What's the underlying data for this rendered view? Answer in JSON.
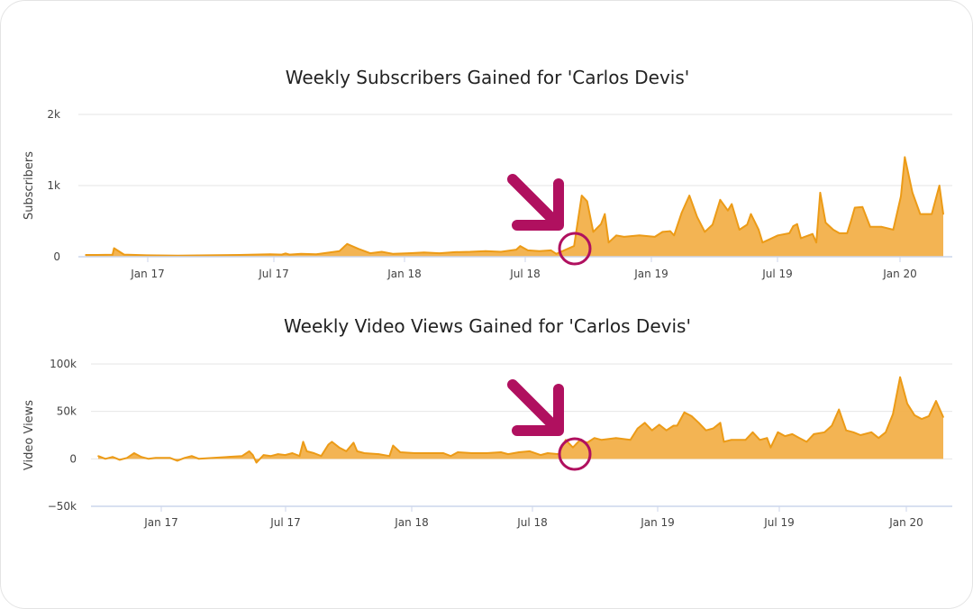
{
  "colors": {
    "series_fill": "#f2b04a",
    "series_line": "#ec9b17",
    "annotation": "#b0105f",
    "grid": "#e6e6e6"
  },
  "chart_data": [
    {
      "type": "area",
      "title": "Weekly Subscribers Gained for 'Carlos Devis'",
      "xlabel": "",
      "ylabel": "Subscribers",
      "ylim": [
        0,
        2000
      ],
      "y_ticks": [
        0,
        1000,
        2000
      ],
      "y_tick_labels": [
        "0",
        "1k",
        "2k"
      ],
      "x_tick_labels": [
        "Jan 17",
        "Jul 17",
        "Jan 18",
        "Jul 18",
        "Jan 19",
        "Jul 19",
        "Jan 20"
      ],
      "x_start": "2016-09",
      "x_end": "2020-02",
      "annotation": "arrow-and-circle",
      "annotation_date": "2018-09-10",
      "series": [
        {
          "values": [
            [
              0.0,
              25
            ],
            [
              0.015,
              25
            ],
            [
              0.035,
              28
            ],
            [
              0.037,
              120
            ],
            [
              0.05,
              30
            ],
            [
              0.08,
              20
            ],
            [
              0.12,
              15
            ],
            [
              0.16,
              20
            ],
            [
              0.2,
              25
            ],
            [
              0.24,
              35
            ],
            [
              0.255,
              30
            ],
            [
              0.26,
              45
            ],
            [
              0.265,
              30
            ],
            [
              0.28,
              40
            ],
            [
              0.3,
              35
            ],
            [
              0.33,
              80
            ],
            [
              0.34,
              180
            ],
            [
              0.355,
              110
            ],
            [
              0.37,
              50
            ],
            [
              0.385,
              70
            ],
            [
              0.4,
              40
            ],
            [
              0.42,
              50
            ],
            [
              0.44,
              60
            ],
            [
              0.46,
              50
            ],
            [
              0.48,
              65
            ],
            [
              0.5,
              70
            ],
            [
              0.52,
              80
            ],
            [
              0.54,
              70
            ],
            [
              0.56,
              100
            ],
            [
              0.565,
              150
            ],
            [
              0.575,
              90
            ],
            [
              0.59,
              80
            ],
            [
              0.605,
              90
            ],
            [
              0.612,
              40
            ],
            [
              0.62,
              80
            ],
            [
              0.635,
              150
            ],
            [
              0.645,
              860
            ],
            [
              0.652,
              780
            ],
            [
              0.66,
              350
            ],
            [
              0.67,
              460
            ],
            [
              0.675,
              600
            ],
            [
              0.68,
              200
            ],
            [
              0.69,
              300
            ],
            [
              0.7,
              280
            ],
            [
              0.72,
              300
            ],
            [
              0.74,
              280
            ],
            [
              0.75,
              350
            ],
            [
              0.76,
              360
            ],
            [
              0.765,
              300
            ],
            [
              0.775,
              620
            ],
            [
              0.785,
              860
            ],
            [
              0.795,
              560
            ],
            [
              0.805,
              350
            ],
            [
              0.815,
              450
            ],
            [
              0.825,
              800
            ],
            [
              0.835,
              650
            ],
            [
              0.84,
              740
            ],
            [
              0.85,
              380
            ],
            [
              0.86,
              450
            ],
            [
              0.865,
              600
            ],
            [
              0.875,
              380
            ],
            [
              0.88,
              200
            ],
            [
              0.89,
              250
            ],
            [
              0.9,
              300
            ],
            [
              0.915,
              330
            ],
            [
              0.92,
              430
            ],
            [
              0.925,
              460
            ],
            [
              0.93,
              260
            ],
            [
              0.945,
              320
            ],
            [
              0.95,
              200
            ],
            [
              0.955,
              900
            ],
            [
              0.962,
              480
            ],
            [
              0.972,
              380
            ],
            [
              0.98,
              330
            ],
            [
              0.99,
              330
            ],
            [
              0.995,
              500
            ],
            [
              1.0,
              690
            ],
            [
              1.01,
              700
            ],
            [
              1.02,
              420
            ],
            [
              1.035,
              420
            ],
            [
              1.05,
              380
            ],
            [
              1.06,
              850
            ],
            [
              1.065,
              1400
            ],
            [
              1.075,
              900
            ],
            [
              1.085,
              600
            ],
            [
              1.1,
              600
            ],
            [
              1.11,
              1000
            ],
            [
              1.115,
              600
            ]
          ]
        }
      ]
    },
    {
      "type": "area",
      "title": "Weekly Video Views Gained for 'Carlos Devis'",
      "xlabel": "",
      "ylabel": "Video Views",
      "ylim": [
        -50000,
        100000
      ],
      "y_ticks": [
        -50000,
        0,
        50000,
        100000
      ],
      "y_tick_labels": [
        "−50k",
        "0",
        "50k",
        "100k"
      ],
      "x_tick_labels": [
        "Jan 17",
        "Jul 17",
        "Jan 18",
        "Jul 18",
        "Jan 19",
        "Jul 19",
        "Jan 20"
      ],
      "annotation": "arrow-and-circle",
      "annotation_date": "2018-09-10",
      "series": [
        {
          "values": [
            [
              0.0,
              3000
            ],
            [
              0.01,
              0
            ],
            [
              0.02,
              2000
            ],
            [
              0.03,
              -1000
            ],
            [
              0.04,
              1000
            ],
            [
              0.05,
              6000
            ],
            [
              0.06,
              2000
            ],
            [
              0.07,
              0
            ],
            [
              0.08,
              1000
            ],
            [
              0.1,
              1000
            ],
            [
              0.11,
              -2000
            ],
            [
              0.12,
              1000
            ],
            [
              0.13,
              3000
            ],
            [
              0.14,
              0
            ],
            [
              0.16,
              1000
            ],
            [
              0.18,
              2000
            ],
            [
              0.2,
              3000
            ],
            [
              0.21,
              8000
            ],
            [
              0.215,
              4000
            ],
            [
              0.22,
              -4000
            ],
            [
              0.23,
              4000
            ],
            [
              0.24,
              3000
            ],
            [
              0.25,
              5000
            ],
            [
              0.26,
              4000
            ],
            [
              0.27,
              6000
            ],
            [
              0.28,
              3000
            ],
            [
              0.285,
              18000
            ],
            [
              0.29,
              8000
            ],
            [
              0.3,
              6000
            ],
            [
              0.31,
              3000
            ],
            [
              0.32,
              15000
            ],
            [
              0.325,
              18000
            ],
            [
              0.335,
              12000
            ],
            [
              0.345,
              8000
            ],
            [
              0.355,
              17000
            ],
            [
              0.36,
              8000
            ],
            [
              0.37,
              6000
            ],
            [
              0.39,
              5000
            ],
            [
              0.405,
              3000
            ],
            [
              0.41,
              14000
            ],
            [
              0.42,
              7000
            ],
            [
              0.44,
              6000
            ],
            [
              0.46,
              6000
            ],
            [
              0.48,
              6000
            ],
            [
              0.49,
              3000
            ],
            [
              0.5,
              7000
            ],
            [
              0.52,
              6000
            ],
            [
              0.54,
              6000
            ],
            [
              0.56,
              7000
            ],
            [
              0.57,
              5000
            ],
            [
              0.585,
              7000
            ],
            [
              0.6,
              8000
            ],
            [
              0.615,
              4000
            ],
            [
              0.625,
              6000
            ],
            [
              0.64,
              5000
            ],
            [
              0.65,
              20000
            ],
            [
              0.66,
              12000
            ],
            [
              0.67,
              20000
            ],
            [
              0.68,
              17000
            ],
            [
              0.69,
              22000
            ],
            [
              0.7,
              20000
            ],
            [
              0.72,
              22000
            ],
            [
              0.74,
              20000
            ],
            [
              0.75,
              32000
            ],
            [
              0.76,
              38000
            ],
            [
              0.77,
              30000
            ],
            [
              0.78,
              36000
            ],
            [
              0.79,
              30000
            ],
            [
              0.8,
              35000
            ],
            [
              0.805,
              35000
            ],
            [
              0.815,
              49000
            ],
            [
              0.825,
              45000
            ],
            [
              0.835,
              38000
            ],
            [
              0.845,
              30000
            ],
            [
              0.855,
              32000
            ],
            [
              0.865,
              38000
            ],
            [
              0.87,
              18000
            ],
            [
              0.88,
              20000
            ],
            [
              0.9,
              20000
            ],
            [
              0.91,
              28000
            ],
            [
              0.92,
              20000
            ],
            [
              0.93,
              22000
            ],
            [
              0.935,
              12000
            ],
            [
              0.945,
              28000
            ],
            [
              0.955,
              24000
            ],
            [
              0.965,
              26000
            ],
            [
              0.975,
              22000
            ],
            [
              0.985,
              18000
            ],
            [
              0.995,
              26000
            ],
            [
              1.01,
              28000
            ],
            [
              1.02,
              35000
            ],
            [
              1.03,
              52000
            ],
            [
              1.04,
              30000
            ],
            [
              1.05,
              28000
            ],
            [
              1.06,
              25000
            ],
            [
              1.075,
              28000
            ],
            [
              1.085,
              22000
            ],
            [
              1.095,
              28000
            ],
            [
              1.105,
              47000
            ],
            [
              1.115,
              86000
            ],
            [
              1.125,
              58000
            ],
            [
              1.135,
              46000
            ],
            [
              1.145,
              42000
            ],
            [
              1.155,
              45000
            ],
            [
              1.165,
              61000
            ],
            [
              1.175,
              44000
            ]
          ]
        }
      ]
    }
  ]
}
